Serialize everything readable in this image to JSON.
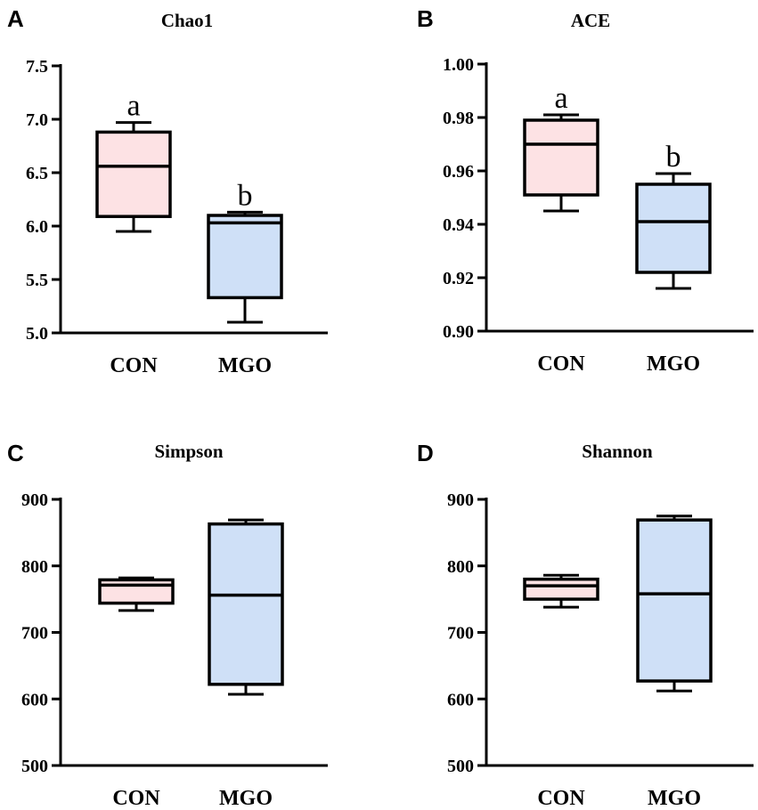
{
  "chart_data": [
    {
      "panel": "A",
      "type": "box",
      "title": "Chao1",
      "categories": [
        "CON",
        "MGO"
      ],
      "yticks": [
        "5.0",
        "5.5",
        "6.0",
        "6.5",
        "7.0",
        "7.5"
      ],
      "ylim": [
        5.0,
        7.5
      ],
      "boxes": [
        {
          "name": "CON",
          "min": 5.95,
          "q1": 6.09,
          "median": 6.56,
          "q3": 6.88,
          "max": 6.97,
          "color": "#fde2e4",
          "sig": "a"
        },
        {
          "name": "MGO",
          "min": 5.1,
          "q1": 5.33,
          "median": 6.03,
          "q3": 6.1,
          "max": 6.13,
          "color": "#cfe0f7",
          "sig": "b"
        }
      ]
    },
    {
      "panel": "B",
      "type": "box",
      "title": "ACE",
      "categories": [
        "CON",
        "MGO"
      ],
      "yticks": [
        "0.90",
        "0.92",
        "0.94",
        "0.96",
        "0.98",
        "1.00"
      ],
      "ylim": [
        0.9,
        1.0
      ],
      "boxes": [
        {
          "name": "CON",
          "min": 0.945,
          "q1": 0.951,
          "median": 0.97,
          "q3": 0.979,
          "max": 0.981,
          "color": "#fde2e4",
          "sig": "a"
        },
        {
          "name": "MGO",
          "min": 0.916,
          "q1": 0.922,
          "median": 0.941,
          "q3": 0.955,
          "max": 0.959,
          "color": "#cfe0f7",
          "sig": "b"
        }
      ]
    },
    {
      "panel": "C",
      "type": "box",
      "title": "Simpson",
      "categories": [
        "CON",
        "MGO"
      ],
      "yticks": [
        "500",
        "600",
        "700",
        "800",
        "900"
      ],
      "ylim": [
        500,
        900
      ],
      "boxes": [
        {
          "name": "CON",
          "min": 733,
          "q1": 744,
          "median": 771,
          "q3": 779,
          "max": 782,
          "color": "#fde2e4",
          "sig": ""
        },
        {
          "name": "MGO",
          "min": 607,
          "q1": 622,
          "median": 756,
          "q3": 863,
          "max": 869,
          "color": "#cfe0f7",
          "sig": ""
        }
      ]
    },
    {
      "panel": "D",
      "type": "box",
      "title": "Shannon",
      "categories": [
        "CON",
        "MGO"
      ],
      "yticks": [
        "500",
        "600",
        "700",
        "800",
        "900"
      ],
      "ylim": [
        500,
        900
      ],
      "boxes": [
        {
          "name": "CON",
          "min": 738,
          "q1": 750,
          "median": 770,
          "q3": 780,
          "max": 786,
          "color": "#fde2e4",
          "sig": ""
        },
        {
          "name": "MGO",
          "min": 612,
          "q1": 627,
          "median": 758,
          "q3": 869,
          "max": 875,
          "color": "#cfe0f7",
          "sig": ""
        }
      ]
    }
  ]
}
